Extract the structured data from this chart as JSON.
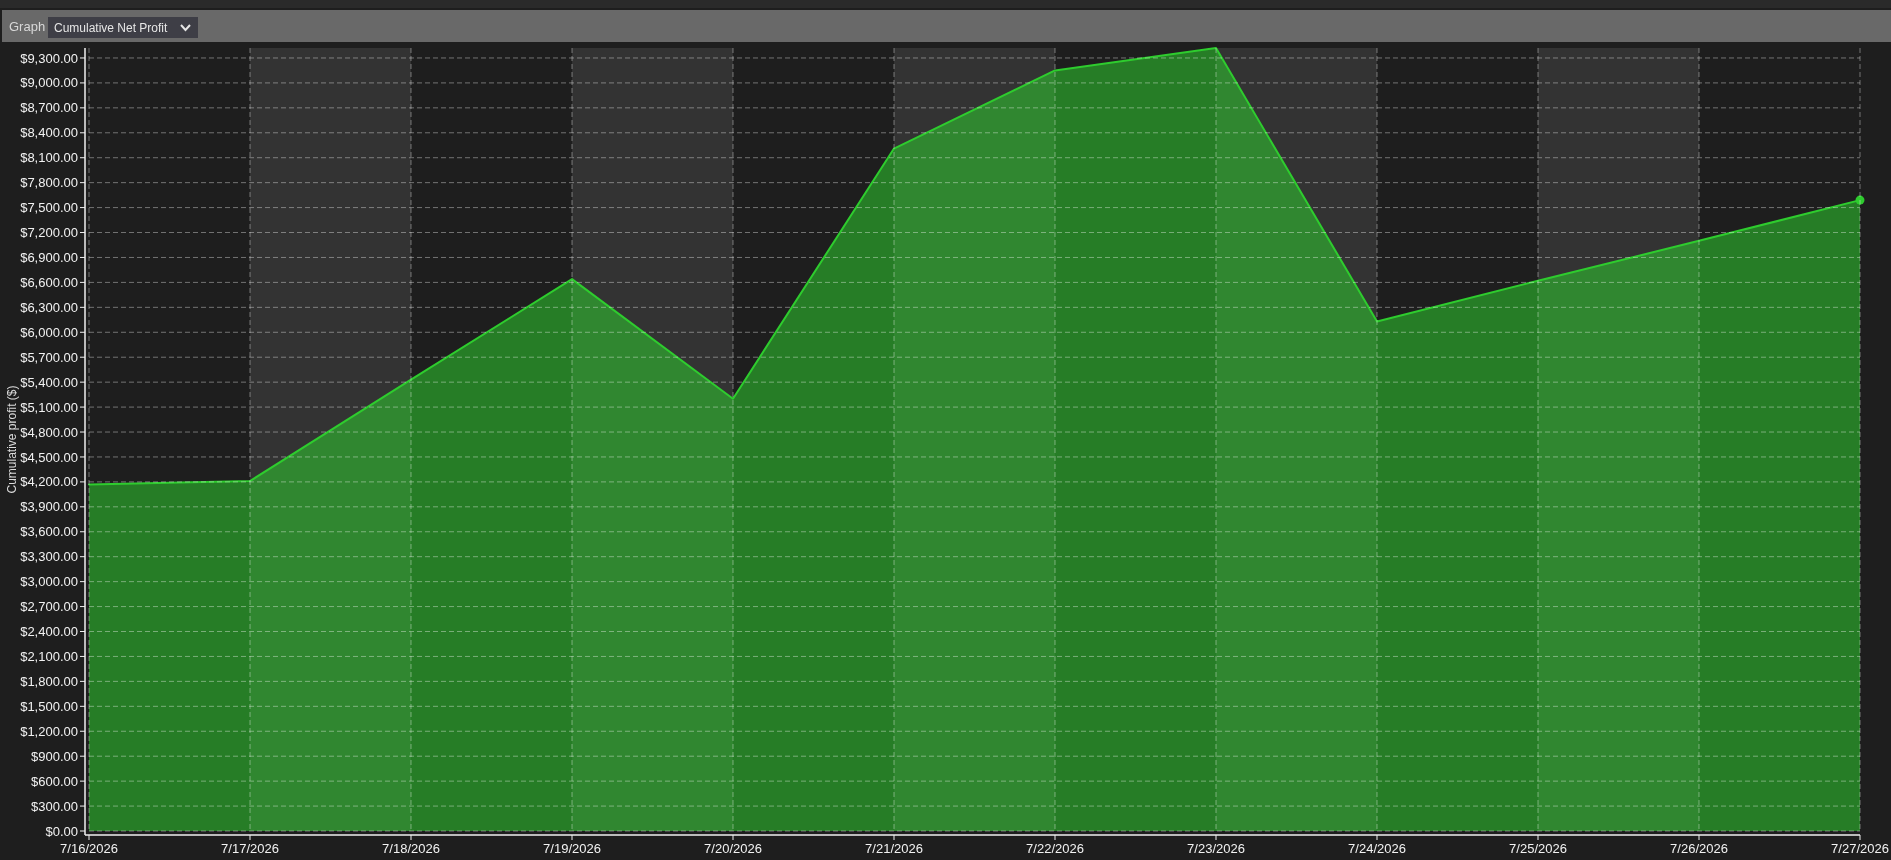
{
  "chart_data": {
    "type": "area",
    "title": "Cumulative Net Profit",
    "ylabel": "Cumulative profit ($)",
    "annotations": [
      "Graph"
    ],
    "x": [
      "2026-07-16",
      "2026-07-17",
      "2026-07-18",
      "2026-07-19",
      "2026-07-20",
      "2026-07-21",
      "2026-07-22",
      "2026-07-23",
      "2026-07-24",
      "2026-07-25",
      "2026-07-26",
      "2026-07-27"
    ],
    "series": [
      {
        "color": "#2ecc2e",
        "values": [
          4170,
          4210,
          5430,
          6640,
          5200,
          8210,
          9150,
          9420,
          6130,
          6620,
          7100,
          7590
        ]
      },
      {
        "type": "scatter",
        "x": [
          "2026-07-27"
        ],
        "values": [
          7590
        ],
        "color": "#2ecc2e",
        "marker": "circle"
      }
    ],
    "xlim": [
      "2026-07-16",
      "2026-07-27"
    ],
    "xticks": [
      {
        "value": "2026-07-16",
        "label": "7/16/2026"
      },
      {
        "value": "2026-07-17",
        "label": "7/17/2026"
      },
      {
        "value": "2026-07-18",
        "label": "7/18/2026"
      },
      {
        "value": "2026-07-19",
        "label": "7/19/2026"
      },
      {
        "value": "2026-07-20",
        "label": "7/20/2026"
      },
      {
        "value": "2026-07-21",
        "label": "7/21/2026"
      },
      {
        "value": "2026-07-22",
        "label": "7/22/2026"
      },
      {
        "value": "2026-07-23",
        "label": "7/23/2026"
      },
      {
        "value": "2026-07-24",
        "label": "7/24/2026"
      },
      {
        "value": "2026-07-25",
        "label": "7/25/2026"
      },
      {
        "value": "2026-07-26",
        "label": "7/26/2026"
      },
      {
        "value": "2026-07-27",
        "label": "7/27/2026"
      }
    ],
    "ylim": [
      0,
      9420
    ],
    "yticks": [
      {
        "value": 0,
        "label": "$0.00"
      },
      {
        "value": 300,
        "label": "$300.00"
      },
      {
        "value": 600,
        "label": "$600.00"
      },
      {
        "value": 900,
        "label": "$900.00"
      },
      {
        "value": 1200,
        "label": "$1,200.00"
      },
      {
        "value": 1500,
        "label": "$1,500.00"
      },
      {
        "value": 1800,
        "label": "$1,800.00"
      },
      {
        "value": 2100,
        "label": "$2,100.00"
      },
      {
        "value": 2400,
        "label": "$2,400.00"
      },
      {
        "value": 2700,
        "label": "$2,700.00"
      },
      {
        "value": 3000,
        "label": "$3,000.00"
      },
      {
        "value": 3300,
        "label": "$3,300.00"
      },
      {
        "value": 3600,
        "label": "$3,600.00"
      },
      {
        "value": 3900,
        "label": "$3,900.00"
      },
      {
        "value": 4200,
        "label": "$4,200.00"
      },
      {
        "value": 4500,
        "label": "$4,500.00"
      },
      {
        "value": 4800,
        "label": "$4,800.00"
      },
      {
        "value": 5100,
        "label": "$5,100.00"
      },
      {
        "value": 5400,
        "label": "$5,400.00"
      },
      {
        "value": 5700,
        "label": "$5,700.00"
      },
      {
        "value": 6000,
        "label": "$6,000.00"
      },
      {
        "value": 6300,
        "label": "$6,300.00"
      },
      {
        "value": 6600,
        "label": "$6,600.00"
      },
      {
        "value": 6900,
        "label": "$6,900.00"
      },
      {
        "value": 7200,
        "label": "$7,200.00"
      },
      {
        "value": 7500,
        "label": "$7,500.00"
      },
      {
        "value": 7800,
        "label": "$7,800.00"
      },
      {
        "value": 8100,
        "label": "$8,100.00"
      },
      {
        "value": 8400,
        "label": "$8,400.00"
      },
      {
        "value": 8700,
        "label": "$8,700.00"
      },
      {
        "value": 9000,
        "label": "$9,000.00"
      },
      {
        "value": 9300,
        "label": "$9,300.00"
      }
    ],
    "grid": true,
    "bands": [
      {
        "axis": "x",
        "from": "2026-07-17",
        "to": "2026-07-18",
        "color": "#333333"
      },
      {
        "axis": "x",
        "from": "2026-07-19",
        "to": "2026-07-20",
        "color": "#333333"
      },
      {
        "axis": "x",
        "from": "2026-07-21",
        "to": "2026-07-22",
        "color": "#333333"
      },
      {
        "axis": "x",
        "from": "2026-07-23",
        "to": "2026-07-24",
        "color": "#333333"
      },
      {
        "axis": "x",
        "from": "2026-07-25",
        "to": "2026-07-26",
        "color": "#333333"
      }
    ]
  }
}
